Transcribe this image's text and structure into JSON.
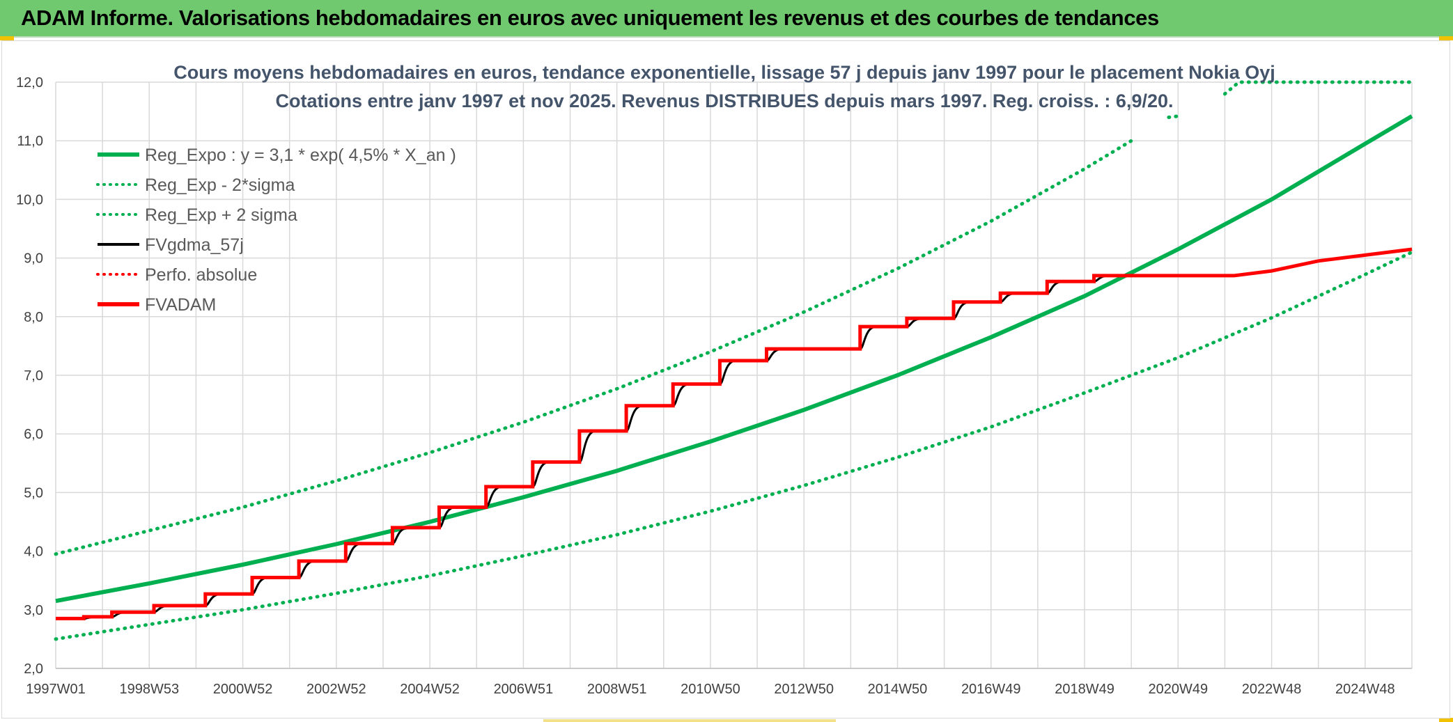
{
  "header": {
    "title": "ADAM Informe. Valorisations hebdomadaires en euros avec uniquement les revenus et des courbes de tendances"
  },
  "colors": {
    "banner": "#70c86f",
    "trend": "#00b050",
    "fvgdma": "#000000",
    "fvadam": "#ff0000",
    "grid": "#d9d9d9"
  },
  "chart_data": {
    "type": "line",
    "title_lines": [
      "Cours moyens hebdomadaires en euros, tendance exponentielle, lissage 57 j depuis janv 1997 pour le placement Nokia Oyj",
      "Cotations entre janv 1997 et nov 2025. Revenus DISTRIBUES depuis mars 1997. Reg. croiss. : 6,9/20."
    ],
    "x_tick_labels": [
      "1997W01",
      "1998W53",
      "2000W52",
      "2002W52",
      "2004W52",
      "2006W51",
      "2008W51",
      "2010W50",
      "2012W50",
      "2014W50",
      "2016W49",
      "2018W49",
      "2020W49",
      "2022W48",
      "2024W48"
    ],
    "x_ticks_years": [
      1997.0,
      1999.0,
      2001.0,
      2003.0,
      2005.0,
      2007.0,
      2009.0,
      2011.0,
      2013.0,
      2015.0,
      2017.0,
      2019.0,
      2021.0,
      2023.0,
      2025.0
    ],
    "x_range": [
      1997.0,
      2026.0
    ],
    "y_tick_labels": [
      "2,0",
      "3,0",
      "4,0",
      "5,0",
      "6,0",
      "7,0",
      "8,0",
      "9,0",
      "10,0",
      "11,0",
      "12,0"
    ],
    "y_range": [
      2.0,
      12.0
    ],
    "grid": true,
    "legend_position": "top-left",
    "legend": [
      {
        "label": "Reg_Expo : y = 3,1 * exp( 4,5% *  X_an )",
        "style": "solid-thick",
        "color": "#00b050"
      },
      {
        "label": "Reg_Exp - 2*sigma",
        "style": "dotted",
        "color": "#00b050"
      },
      {
        "label": "Reg_Exp + 2 sigma",
        "style": "dotted",
        "color": "#00b050"
      },
      {
        "label": "FVgdma_57j",
        "style": "solid",
        "color": "#000000"
      },
      {
        "label": "Perfo. absolue",
        "style": "dotted",
        "color": "#ff0000"
      },
      {
        "label": "FVADAM",
        "style": "solid-thick",
        "color": "#ff0000"
      }
    ],
    "series": [
      {
        "name": "Reg_Expo : y = 3,1 * exp( 4,5% *  X_an )",
        "x": [
          1997.0,
          1999.0,
          2001.0,
          2003.0,
          2005.0,
          2007.0,
          2009.0,
          2011.0,
          2013.0,
          2015.0,
          2017.0,
          2019.0,
          2021.0,
          2023.0,
          2025.0,
          2026.0
        ],
        "y": [
          3.15,
          3.45,
          3.77,
          4.12,
          4.5,
          4.92,
          5.37,
          5.87,
          6.41,
          7.0,
          7.65,
          8.35,
          9.15,
          10.0,
          10.95,
          11.42
        ]
      },
      {
        "name": "Reg_Exp - 2*sigma",
        "x": [
          1997.0,
          1999.0,
          2001.0,
          2003.0,
          2005.0,
          2007.0,
          2009.0,
          2011.0,
          2013.0,
          2015.0,
          2017.0,
          2019.0,
          2021.0,
          2023.0,
          2025.0,
          2026.0
        ],
        "y": [
          2.5,
          2.75,
          3.0,
          3.28,
          3.58,
          3.92,
          4.28,
          4.68,
          5.12,
          5.6,
          6.12,
          6.7,
          7.3,
          7.98,
          8.72,
          9.1
        ]
      },
      {
        "name": "Reg_Exp + 2 sigma",
        "x": [
          1997.0,
          1999.0,
          2001.0,
          2003.0,
          2005.0,
          2007.0,
          2009.0,
          2011.0,
          2013.0,
          2015.0,
          2017.0,
          2019.0,
          2020.0
        ],
        "y": [
          3.95,
          4.35,
          4.75,
          5.2,
          5.68,
          6.2,
          6.77,
          7.4,
          8.08,
          8.82,
          9.63,
          10.52,
          11.0
        ]
      },
      {
        "name": "FVADAM",
        "x": [
          1997.0,
          1997.6,
          1997.6,
          1998.2,
          1998.2,
          1999.1,
          1999.1,
          2000.2,
          2000.2,
          2001.2,
          2001.2,
          2002.2,
          2002.2,
          2003.2,
          2003.2,
          2004.2,
          2004.2,
          2005.2,
          2005.2,
          2006.2,
          2006.2,
          2007.2,
          2007.2,
          2008.2,
          2008.2,
          2009.2,
          2009.2,
          2010.2,
          2010.2,
          2011.2,
          2011.2,
          2012.2,
          2012.2,
          2013.2,
          2013.2,
          2014.2,
          2014.2,
          2015.2,
          2015.2,
          2016.2,
          2016.2,
          2017.2,
          2017.2,
          2018.2,
          2018.2,
          2019.2,
          2019.2,
          2022.2,
          2023.0,
          2024.0,
          2025.0,
          2026.0
        ],
        "y": [
          2.85,
          2.85,
          2.88,
          2.88,
          2.96,
          2.96,
          3.07,
          3.07,
          3.27,
          3.27,
          3.55,
          3.55,
          3.83,
          3.83,
          4.13,
          4.13,
          4.4,
          4.4,
          4.75,
          4.75,
          5.1,
          5.1,
          5.52,
          5.52,
          6.05,
          6.05,
          6.48,
          6.48,
          6.85,
          6.85,
          7.25,
          7.25,
          7.45,
          7.45,
          7.45,
          7.45,
          7.83,
          7.83,
          7.97,
          7.97,
          8.25,
          8.25,
          8.4,
          8.4,
          8.6,
          8.6,
          8.7,
          8.7,
          8.78,
          8.95,
          9.05,
          9.15
        ]
      }
    ]
  }
}
